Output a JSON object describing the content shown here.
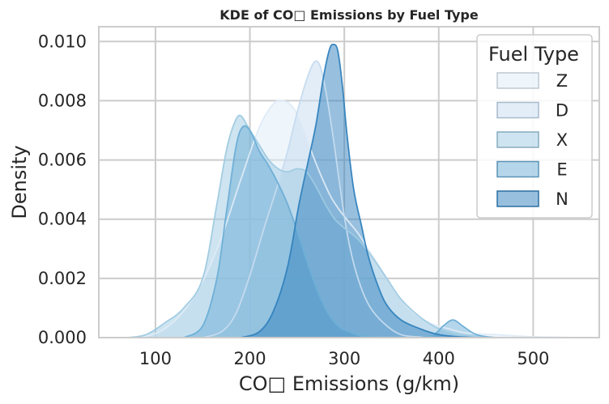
{
  "chart_data": {
    "type": "area",
    "title": "KDE of CO□ Emissions by Fuel Type",
    "xlabel": "CO□ Emissions (g/km)",
    "ylabel": "Density",
    "xlim": [
      40,
      570
    ],
    "ylim": [
      0,
      0.0105
    ],
    "xticks": [
      "100",
      "200",
      "300",
      "400",
      "500"
    ],
    "yticks": [
      "0.000",
      "0.002",
      "0.004",
      "0.006",
      "0.008",
      "0.010"
    ],
    "grid": true,
    "legend": {
      "title": "Fuel Type",
      "placement": "top-right"
    },
    "series": [
      {
        "name": "Z",
        "color": "#deebf7",
        "x": [
          60,
          90,
          110,
          130,
          150,
          170,
          190,
          210,
          225,
          235,
          245,
          255,
          265,
          275,
          285,
          295,
          305,
          315,
          325,
          335,
          345,
          355,
          365,
          375,
          390,
          410,
          430,
          460,
          500,
          550
        ],
        "y": [
          0,
          5e-05,
          0.0003,
          0.0009,
          0.0019,
          0.0034,
          0.0053,
          0.0071,
          0.0079,
          0.008,
          0.0078,
          0.0072,
          0.0063,
          0.0055,
          0.0048,
          0.0043,
          0.0039,
          0.0035,
          0.003,
          0.0025,
          0.002,
          0.0015,
          0.0011,
          0.0008,
          0.0005,
          0.0003,
          0.00015,
          0.0001,
          3e-05,
          0
        ]
      },
      {
        "name": "D",
        "color": "#c6dbef",
        "x": [
          150,
          170,
          185,
          200,
          215,
          230,
          240,
          250,
          260,
          268,
          274,
          280,
          288,
          295,
          302,
          310,
          320,
          330,
          345,
          360,
          380,
          400
        ],
        "y": [
          0,
          0.0002,
          0.0008,
          0.0021,
          0.0037,
          0.0052,
          0.0063,
          0.0076,
          0.0087,
          0.0093,
          0.0092,
          0.0084,
          0.0068,
          0.0052,
          0.0037,
          0.0025,
          0.0015,
          0.0009,
          0.0004,
          0.0001,
          2e-05,
          0
        ]
      },
      {
        "name": "X",
        "color": "#9ecae1",
        "x": [
          70,
          90,
          110,
          130,
          150,
          165,
          175,
          183,
          190,
          200,
          210,
          220,
          230,
          240,
          250,
          260,
          270,
          280,
          290,
          300,
          315,
          330,
          345,
          360,
          380,
          400,
          420,
          440,
          460
        ],
        "y": [
          0,
          0.0001,
          0.0005,
          0.001,
          0.002,
          0.0045,
          0.0063,
          0.0072,
          0.0075,
          0.007,
          0.0065,
          0.006,
          0.0057,
          0.0056,
          0.0057,
          0.0056,
          0.0051,
          0.0045,
          0.004,
          0.0037,
          0.0033,
          0.0027,
          0.002,
          0.0013,
          0.0007,
          0.0003,
          0.0001,
          3e-05,
          0
        ]
      },
      {
        "name": "E",
        "color": "#6baed6",
        "x": [
          130,
          150,
          165,
          175,
          185,
          192,
          200,
          210,
          220,
          230,
          240,
          250,
          260,
          270,
          278,
          285,
          290,
          297,
          305,
          312,
          320,
          330,
          345,
          360,
          380,
          395,
          405,
          415,
          425,
          440,
          460
        ],
        "y": [
          0,
          0.0004,
          0.002,
          0.0042,
          0.0064,
          0.0071,
          0.007,
          0.0063,
          0.0058,
          0.0052,
          0.0045,
          0.0036,
          0.0026,
          0.0017,
          0.0011,
          0.0007,
          0.0005,
          0.0003,
          0.0002,
          0.0001,
          5e-05,
          2e-05,
          0,
          0,
          0,
          0.0001,
          0.0004,
          0.0006,
          0.0004,
          0.0001,
          0
        ]
      },
      {
        "name": "N",
        "color": "#3182bd",
        "x": [
          190,
          210,
          225,
          240,
          252,
          262,
          270,
          278,
          284,
          288,
          293,
          298,
          303,
          310,
          318,
          325,
          335,
          345,
          360,
          380,
          400,
          420,
          440
        ],
        "y": [
          0,
          0.0002,
          0.0009,
          0.0024,
          0.0045,
          0.006,
          0.0072,
          0.0088,
          0.0097,
          0.0099,
          0.0097,
          0.0085,
          0.0068,
          0.005,
          0.0038,
          0.0028,
          0.0018,
          0.0011,
          0.0006,
          0.0003,
          0.0001,
          3e-05,
          0
        ]
      }
    ]
  }
}
